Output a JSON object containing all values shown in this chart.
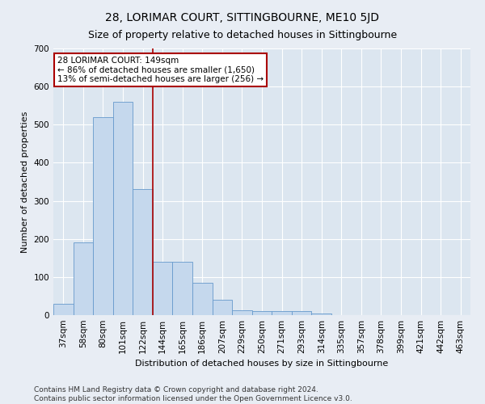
{
  "title": "28, LORIMAR COURT, SITTINGBOURNE, ME10 5JD",
  "subtitle": "Size of property relative to detached houses in Sittingbourne",
  "xlabel": "Distribution of detached houses by size in Sittingbourne",
  "ylabel": "Number of detached properties",
  "categories": [
    "37sqm",
    "58sqm",
    "80sqm",
    "101sqm",
    "122sqm",
    "144sqm",
    "165sqm",
    "186sqm",
    "207sqm",
    "229sqm",
    "250sqm",
    "271sqm",
    "293sqm",
    "314sqm",
    "335sqm",
    "357sqm",
    "378sqm",
    "399sqm",
    "421sqm",
    "442sqm",
    "463sqm"
  ],
  "values": [
    30,
    190,
    520,
    560,
    330,
    140,
    140,
    85,
    40,
    13,
    10,
    10,
    10,
    5,
    0,
    0,
    0,
    0,
    0,
    0,
    0
  ],
  "bar_color": "#c5d8ed",
  "bar_edge_color": "#6699cc",
  "vline_x": 4.5,
  "vline_color": "#aa0000",
  "annotation_text": "28 LORIMAR COURT: 149sqm\n← 86% of detached houses are smaller (1,650)\n13% of semi-detached houses are larger (256) →",
  "annotation_box_facecolor": "#ffffff",
  "annotation_box_edgecolor": "#aa0000",
  "ylim": [
    0,
    700
  ],
  "yticks": [
    0,
    100,
    200,
    300,
    400,
    500,
    600,
    700
  ],
  "plot_bg_color": "#dce6f0",
  "fig_bg_color": "#e8edf4",
  "footer": "Contains HM Land Registry data © Crown copyright and database right 2024.\nContains public sector information licensed under the Open Government Licence v3.0.",
  "title_fontsize": 10,
  "subtitle_fontsize": 9,
  "label_fontsize": 8,
  "tick_fontsize": 7.5,
  "annotation_fontsize": 7.5,
  "footer_fontsize": 6.5
}
